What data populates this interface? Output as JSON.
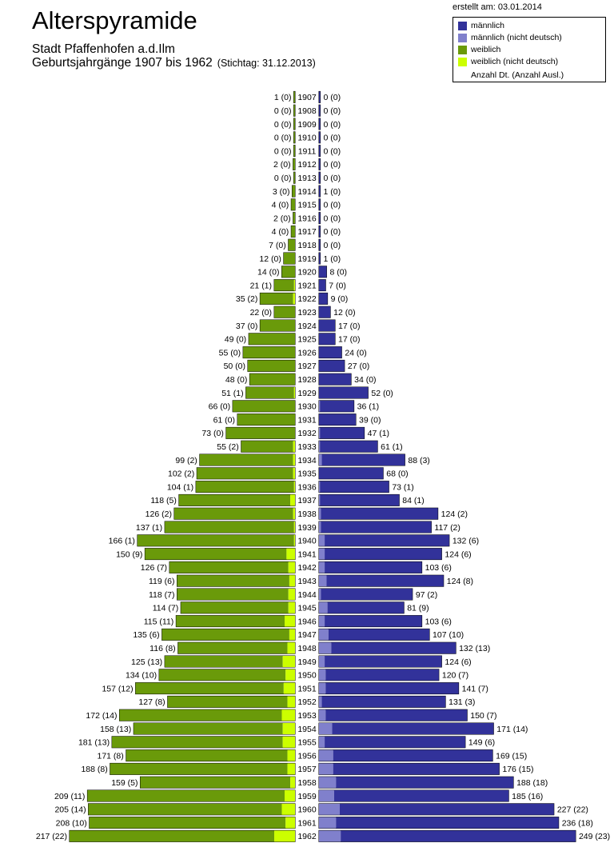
{
  "header": {
    "title": "Alterspyramide",
    "subtitle": "Stadt Pfaffenhofen a.d.Ilm",
    "subtitle2": "Geburtsjahrgänge 1907 bis 1962",
    "stichtag": "(Stichtag: 31.12.2013)",
    "created": "erstellt am: 03.01.2014"
  },
  "legend": {
    "items": [
      {
        "label": "männlich",
        "color": "#32329a"
      },
      {
        "label": "männlich (nicht deutsch)",
        "color": "#8080cc"
      },
      {
        "label": "weiblich",
        "color": "#6a9a0a"
      },
      {
        "label": "weiblich (nicht deutsch)",
        "color": "#ccff00"
      }
    ],
    "note": "Anzahl Dt. (Anzahl Ausl.)"
  },
  "chart_data": {
    "type": "bar",
    "orientation": "horizontal-pyramid",
    "categories": [
      1907,
      1908,
      1909,
      1910,
      1911,
      1912,
      1913,
      1914,
      1915,
      1916,
      1917,
      1918,
      1919,
      1920,
      1921,
      1922,
      1923,
      1924,
      1925,
      1926,
      1927,
      1928,
      1929,
      1930,
      1931,
      1932,
      1933,
      1934,
      1935,
      1936,
      1937,
      1938,
      1939,
      1940,
      1941,
      1942,
      1943,
      1944,
      1945,
      1946,
      1947,
      1948,
      1949,
      1950,
      1951,
      1952,
      1953,
      1954,
      1955,
      1956,
      1957,
      1958,
      1959,
      1960,
      1961,
      1962
    ],
    "series": [
      {
        "name": "weiblich",
        "values": [
          1,
          0,
          0,
          0,
          0,
          2,
          0,
          3,
          4,
          2,
          4,
          7,
          12,
          14,
          21,
          35,
          22,
          37,
          49,
          55,
          50,
          48,
          51,
          66,
          61,
          73,
          55,
          99,
          102,
          104,
          118,
          126,
          137,
          166,
          150,
          126,
          119,
          118,
          114,
          115,
          135,
          116,
          125,
          134,
          157,
          127,
          172,
          158,
          181,
          171,
          188,
          159,
          209,
          205,
          208,
          217
        ]
      },
      {
        "name": "weiblich (nicht deutsch)",
        "values": [
          0,
          0,
          0,
          0,
          0,
          0,
          0,
          0,
          0,
          0,
          0,
          0,
          0,
          0,
          1,
          2,
          0,
          0,
          0,
          0,
          0,
          0,
          1,
          0,
          0,
          0,
          2,
          2,
          2,
          1,
          5,
          2,
          1,
          1,
          9,
          7,
          6,
          7,
          7,
          11,
          6,
          8,
          13,
          10,
          12,
          8,
          14,
          13,
          13,
          8,
          8,
          5,
          11,
          14,
          10,
          22
        ]
      },
      {
        "name": "männlich",
        "values": [
          0,
          0,
          0,
          0,
          0,
          0,
          0,
          1,
          0,
          0,
          0,
          0,
          1,
          8,
          7,
          9,
          12,
          17,
          17,
          24,
          27,
          34,
          52,
          36,
          39,
          47,
          61,
          88,
          68,
          73,
          84,
          124,
          117,
          132,
          124,
          103,
          124,
          97,
          81,
          103,
          107,
          132,
          124,
          120,
          141,
          131,
          150,
          171,
          149,
          169,
          176,
          188,
          185,
          227,
          236,
          249
        ]
      },
      {
        "name": "männlich (nicht deutsch)",
        "values": [
          0,
          0,
          0,
          0,
          0,
          0,
          0,
          0,
          0,
          0,
          0,
          0,
          0,
          0,
          0,
          0,
          0,
          0,
          0,
          0,
          0,
          0,
          0,
          1,
          0,
          1,
          1,
          3,
          0,
          1,
          1,
          2,
          2,
          6,
          6,
          6,
          8,
          2,
          9,
          6,
          10,
          13,
          6,
          7,
          7,
          3,
          7,
          14,
          6,
          15,
          15,
          18,
          16,
          22,
          18,
          23
        ]
      }
    ],
    "value_label_format": "Anzahl Dt. (Anzahl Ausl.)",
    "xlim": [
      0,
      270
    ]
  }
}
